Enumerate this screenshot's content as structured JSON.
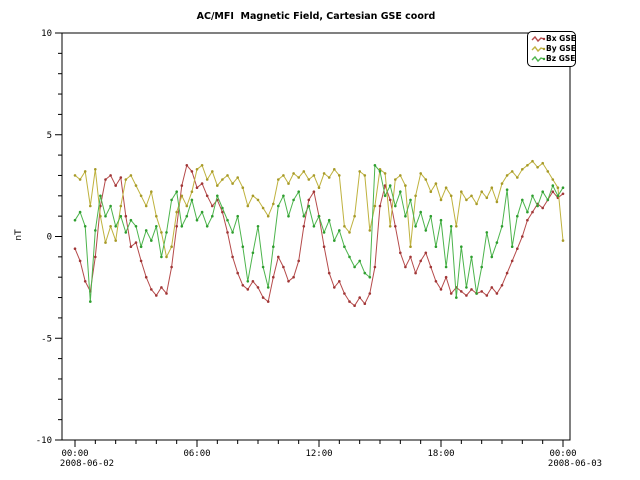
{
  "chart_data": {
    "type": "line",
    "title": "AC/MFI  Magnetic Field, Cartesian GSE coord",
    "ylabel": "nT",
    "ylim": [
      -10,
      10
    ],
    "xlim_hours": [
      0,
      24
    ],
    "grid": false,
    "legend_position": "top-right",
    "background_color": "#ffffff",
    "axis_color": "#000000",
    "y_major_ticks": [
      -10,
      -5,
      0,
      5,
      10
    ],
    "y_minor_step": 1,
    "x_minor_step_hours": 1,
    "x_major_ticks": [
      {
        "hour": 0,
        "label": "00:00",
        "date": "2008-06-02"
      },
      {
        "hour": 6,
        "label": "06:00"
      },
      {
        "hour": 12,
        "label": "12:00"
      },
      {
        "hour": 18,
        "label": "18:00"
      },
      {
        "hour": 24,
        "label": "00:00",
        "date": "2008-06-03"
      }
    ],
    "sample_interval_hours": 0.25,
    "series": [
      {
        "name": "Bx GSE",
        "color": "#b54a4a",
        "marker_color": "#a03636",
        "values": [
          -0.6,
          -1.2,
          -2.2,
          -2.7,
          -1.0,
          1.5,
          2.8,
          3.0,
          2.5,
          2.9,
          1.0,
          -0.5,
          -0.3,
          -1.2,
          -2.0,
          -2.6,
          -2.9,
          -2.5,
          -2.8,
          -1.5,
          0.5,
          2.5,
          3.5,
          3.2,
          2.4,
          2.6,
          2.0,
          1.5,
          1.8,
          1.2,
          0.2,
          -1.0,
          -1.8,
          -2.4,
          -2.6,
          -2.2,
          -2.5,
          -3.0,
          -3.2,
          -2.0,
          -1.0,
          -1.5,
          -2.2,
          -2.0,
          -1.2,
          0.5,
          1.8,
          2.2,
          1.0,
          -0.5,
          -1.8,
          -2.5,
          -2.2,
          -2.8,
          -3.2,
          -3.4,
          -3.0,
          -3.3,
          -2.8,
          -1.5,
          1.5,
          2.5,
          1.8,
          0.5,
          -0.8,
          -1.5,
          -1.0,
          -1.8,
          -1.2,
          -0.8,
          -1.5,
          -2.2,
          -2.6,
          -2.0,
          -2.8,
          -2.5,
          -2.7,
          -2.9,
          -2.6,
          -2.8,
          -2.7,
          -2.9,
          -2.5,
          -2.8,
          -2.4,
          -1.8,
          -1.2,
          -0.6,
          0.0,
          0.8,
          1.2,
          1.6,
          1.4,
          1.8,
          2.2,
          1.9,
          2.1
        ]
      },
      {
        "name": "By GSE",
        "color": "#bfb23e",
        "marker_color": "#a79a28",
        "values": [
          3.0,
          2.8,
          3.2,
          1.5,
          3.3,
          1.0,
          -0.3,
          0.5,
          -0.2,
          1.5,
          2.8,
          3.0,
          2.5,
          2.0,
          1.5,
          2.2,
          1.0,
          0.2,
          -1.0,
          -0.5,
          1.2,
          2.0,
          1.5,
          2.2,
          3.3,
          3.5,
          2.8,
          3.2,
          2.5,
          2.8,
          3.0,
          2.6,
          2.9,
          2.4,
          1.5,
          2.0,
          1.8,
          1.4,
          1.0,
          1.6,
          2.8,
          3.0,
          2.6,
          3.1,
          2.9,
          3.2,
          2.8,
          3.0,
          2.4,
          3.1,
          2.9,
          3.3,
          3.0,
          0.5,
          0.2,
          1.0,
          3.2,
          3.0,
          0.3,
          1.5,
          3.3,
          3.1,
          0.5,
          2.8,
          3.0,
          2.5,
          -0.5,
          2.0,
          3.1,
          2.8,
          2.2,
          2.6,
          1.8,
          2.4,
          2.0,
          0.5,
          2.2,
          1.8,
          2.0,
          1.6,
          2.2,
          1.9,
          2.4,
          1.7,
          2.6,
          3.0,
          3.2,
          2.9,
          3.3,
          3.5,
          3.7,
          3.4,
          3.6,
          3.2,
          2.8,
          2.4,
          -0.2
        ]
      },
      {
        "name": "Bz GSE",
        "color": "#4cb44c",
        "marker_color": "#2f9e2f",
        "values": [
          0.8,
          1.2,
          0.5,
          -3.2,
          0.3,
          2.0,
          1.0,
          1.5,
          0.5,
          1.0,
          0.2,
          0.8,
          0.5,
          -0.5,
          0.3,
          -0.2,
          0.5,
          -1.0,
          0.2,
          1.8,
          2.2,
          0.5,
          1.0,
          1.8,
          0.8,
          1.2,
          0.5,
          1.0,
          2.0,
          1.4,
          0.8,
          0.2,
          1.0,
          -0.5,
          -2.2,
          -0.8,
          0.5,
          -1.5,
          -2.5,
          -0.5,
          1.5,
          2.0,
          1.0,
          1.8,
          2.2,
          1.0,
          1.5,
          0.5,
          1.0,
          0.2,
          0.8,
          -0.2,
          0.3,
          -0.5,
          -1.0,
          -1.5,
          -1.2,
          -1.8,
          -2.0,
          3.5,
          3.2,
          2.0,
          2.5,
          1.5,
          2.2,
          1.0,
          1.8,
          0.5,
          1.2,
          0.3,
          1.0,
          -0.5,
          0.8,
          -1.5,
          0.5,
          -3.0,
          -0.5,
          -2.5,
          -1.0,
          -2.8,
          -1.5,
          0.2,
          -1.0,
          -0.3,
          0.5,
          2.3,
          -0.5,
          1.0,
          1.8,
          1.2,
          2.0,
          1.5,
          2.2,
          1.8,
          2.5,
          2.0,
          2.4
        ]
      }
    ]
  }
}
